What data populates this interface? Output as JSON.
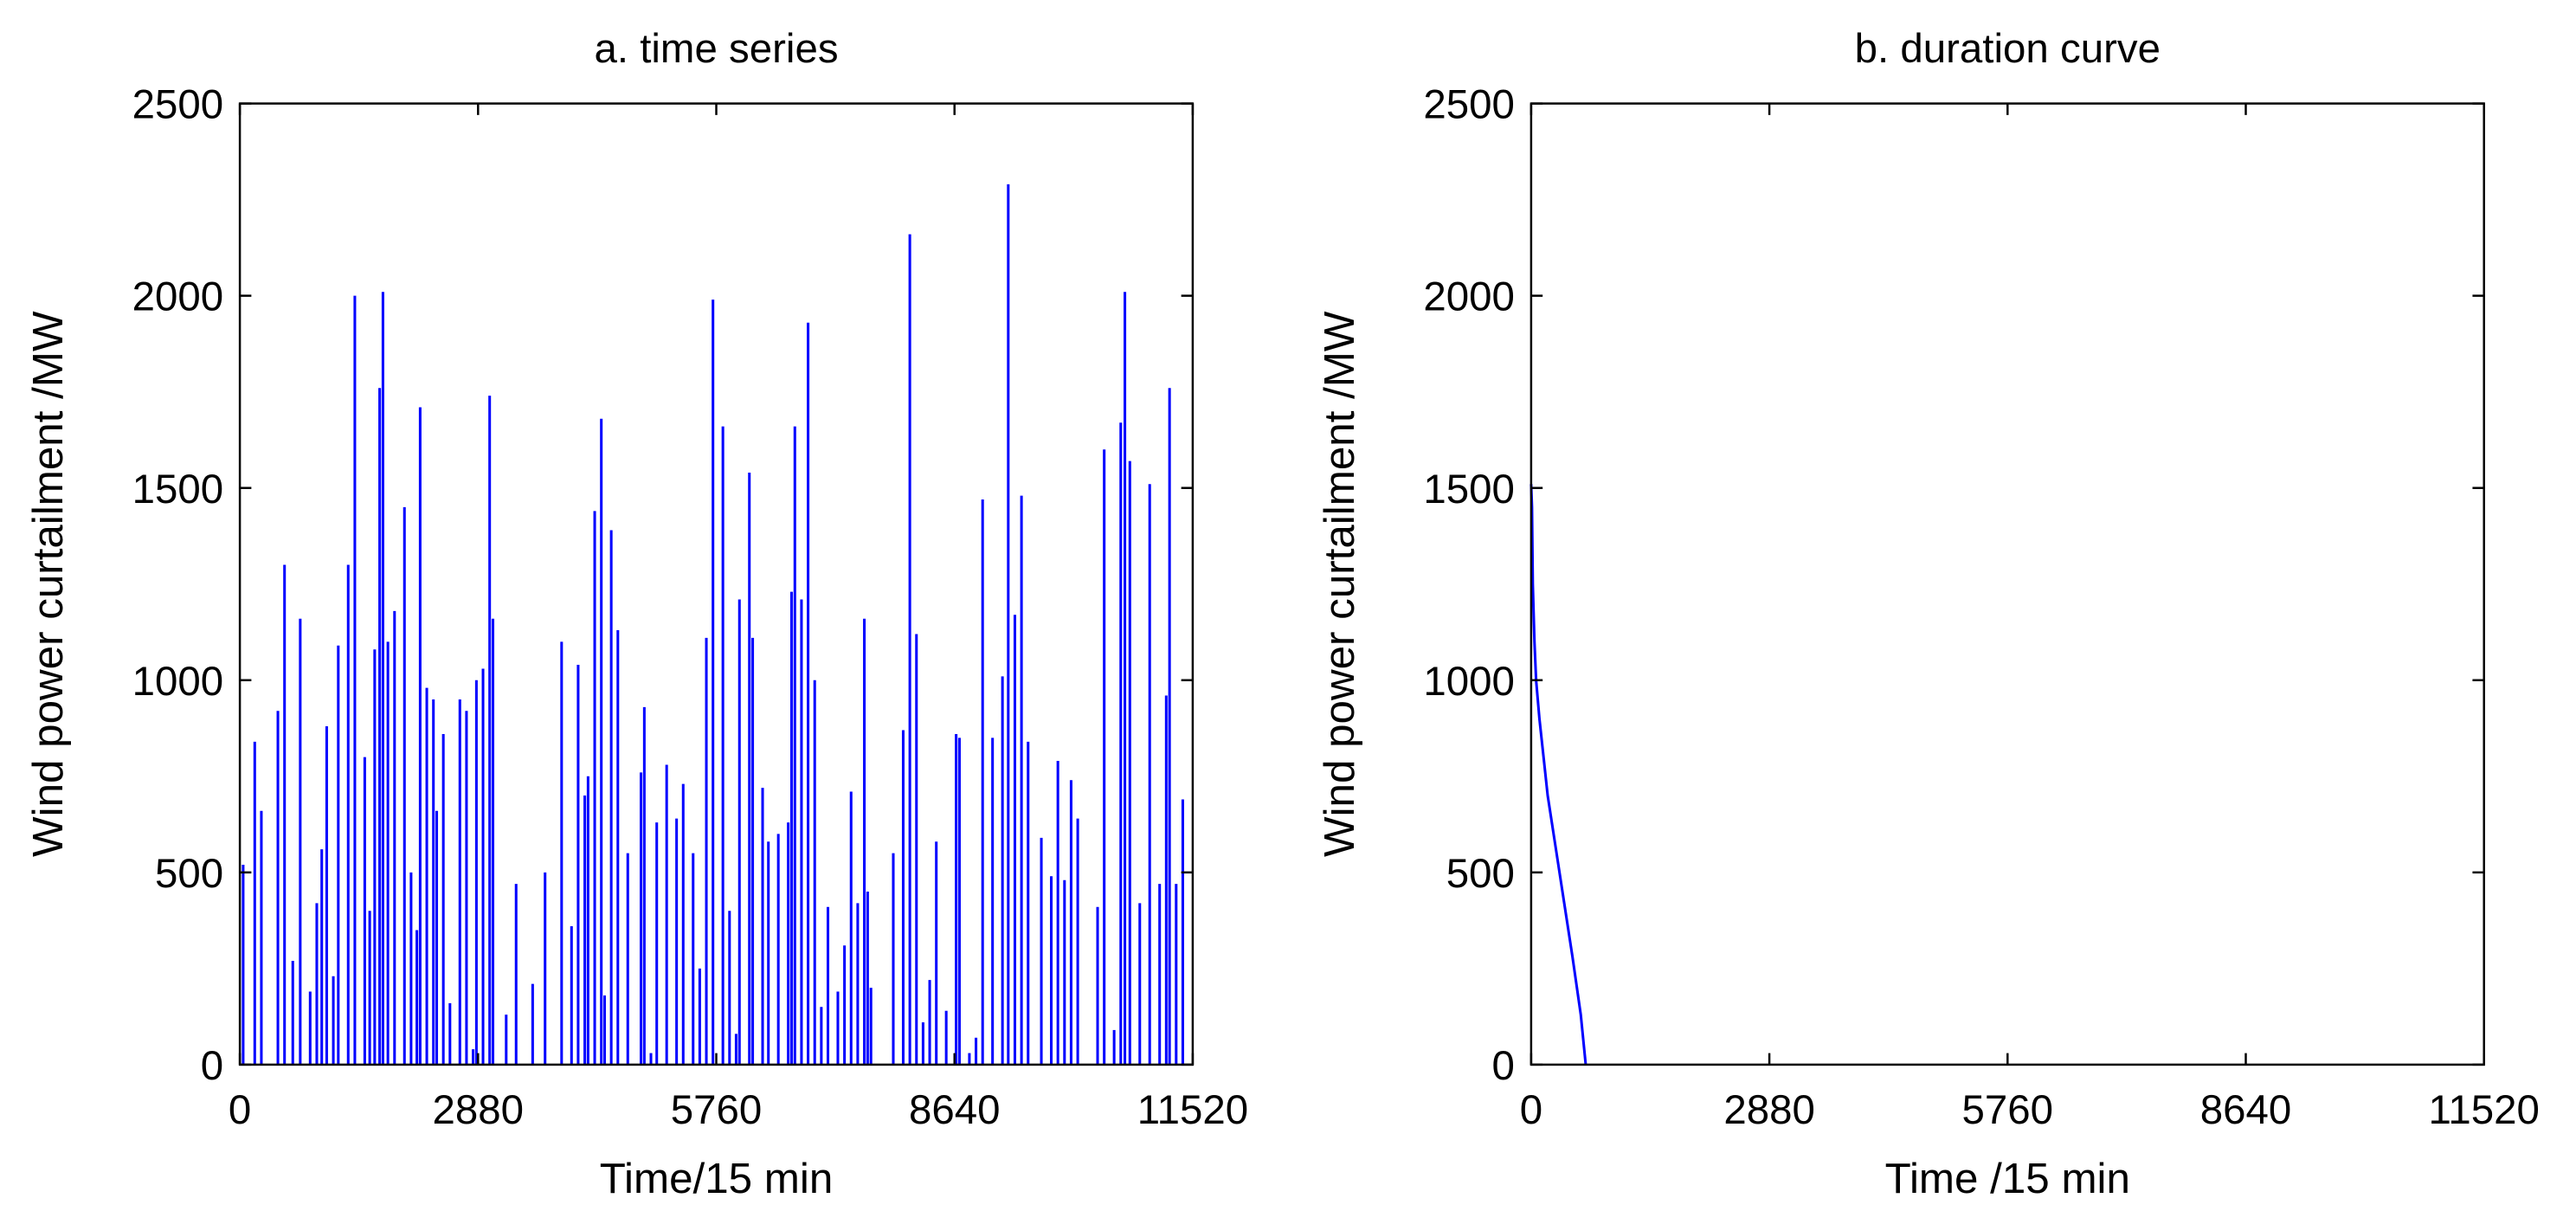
{
  "chart_data": [
    {
      "type": "stem",
      "title": "a. time series",
      "x_label": "Time/15 min",
      "y_label": "Wind power curtailment /MW",
      "color": "#0000ff",
      "xlim": [
        0,
        11520
      ],
      "xticks": [
        0,
        2880,
        5760,
        8640,
        11520
      ],
      "ylim": [
        0,
        2500
      ],
      "yticks": [
        0,
        500,
        1000,
        1500,
        2000,
        2500
      ],
      "x": [
        40,
        180,
        260,
        460,
        540,
        640,
        730,
        850,
        930,
        990,
        1050,
        1130,
        1190,
        1310,
        1390,
        1510,
        1570,
        1630,
        1690,
        1730,
        1790,
        1870,
        1990,
        2070,
        2140,
        2180,
        2260,
        2340,
        2380,
        2460,
        2540,
        2660,
        2740,
        2820,
        2860,
        2940,
        3020,
        3060,
        3220,
        3340,
        3540,
        3690,
        3890,
        4010,
        4090,
        4170,
        4210,
        4290,
        4370,
        4410,
        4490,
        4570,
        4690,
        4850,
        4890,
        4970,
        5040,
        5160,
        5280,
        5360,
        5480,
        5560,
        5640,
        5720,
        5840,
        5920,
        6000,
        6040,
        6160,
        6200,
        6320,
        6390,
        6510,
        6630,
        6670,
        6710,
        6790,
        6870,
        6950,
        7030,
        7110,
        7230,
        7310,
        7390,
        7470,
        7550,
        7590,
        7630,
        7900,
        8020,
        8100,
        8180,
        8260,
        8340,
        8420,
        8540,
        8660,
        8700,
        8820,
        8900,
        8980,
        9100,
        9220,
        9290,
        9370,
        9450,
        9530,
        9690,
        9810,
        9890,
        9970,
        10050,
        10130,
        10370,
        10450,
        10570,
        10650,
        10700,
        10760,
        10880,
        11000,
        11120,
        11200,
        11240,
        11320,
        11400
      ],
      "values": [
        520,
        840,
        660,
        920,
        1300,
        270,
        1160,
        190,
        420,
        560,
        880,
        230,
        1090,
        1300,
        2000,
        800,
        400,
        1080,
        1760,
        2010,
        1100,
        1180,
        1450,
        500,
        350,
        1710,
        980,
        950,
        660,
        860,
        160,
        950,
        920,
        40,
        1000,
        1030,
        1740,
        1160,
        130,
        470,
        210,
        500,
        1100,
        360,
        1040,
        700,
        750,
        1440,
        1680,
        180,
        1390,
        1130,
        550,
        760,
        930,
        30,
        630,
        780,
        640,
        730,
        550,
        250,
        1110,
        1990,
        1660,
        400,
        80,
        1210,
        1540,
        1110,
        720,
        580,
        600,
        630,
        1230,
        1660,
        1210,
        1930,
        1000,
        150,
        410,
        190,
        310,
        710,
        420,
        1160,
        450,
        200,
        550,
        870,
        2160,
        1120,
        110,
        220,
        580,
        140,
        860,
        850,
        30,
        70,
        1470,
        850,
        1010,
        2290,
        1170,
        1480,
        840,
        590,
        490,
        790,
        480,
        740,
        640,
        410,
        1600,
        90,
        1670,
        2010,
        1570,
        420,
        1510,
        470,
        960,
        1760,
        470,
        690
      ]
    },
    {
      "type": "line",
      "title": "b. duration curve",
      "x_label": "Time /15 min",
      "y_label": "Wind power curtailment /MW",
      "color": "#0000ff",
      "xlim": [
        0,
        11520
      ],
      "xticks": [
        0,
        2880,
        5760,
        8640,
        11520
      ],
      "ylim": [
        0,
        2500
      ],
      "yticks": [
        0,
        500,
        1000,
        1500,
        2000,
        2500
      ],
      "x": [
        0,
        10,
        20,
        40,
        60,
        100,
        150,
        200,
        300,
        400,
        500,
        600,
        660
      ],
      "values": [
        1510,
        1450,
        1250,
        1100,
        1000,
        900,
        800,
        700,
        560,
        420,
        280,
        130,
        0
      ]
    }
  ]
}
